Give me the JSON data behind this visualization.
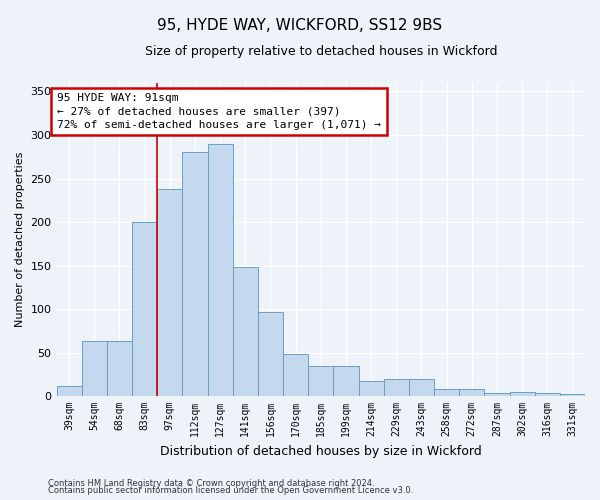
{
  "title": "95, HYDE WAY, WICKFORD, SS12 9BS",
  "subtitle": "Size of property relative to detached houses in Wickford",
  "xlabel": "Distribution of detached houses by size in Wickford",
  "ylabel": "Number of detached properties",
  "categories": [
    "39sqm",
    "54sqm",
    "68sqm",
    "83sqm",
    "97sqm",
    "112sqm",
    "127sqm",
    "141sqm",
    "156sqm",
    "170sqm",
    "185sqm",
    "199sqm",
    "214sqm",
    "229sqm",
    "243sqm",
    "258sqm",
    "272sqm",
    "287sqm",
    "302sqm",
    "316sqm",
    "331sqm"
  ],
  "values": [
    12,
    63,
    63,
    200,
    238,
    280,
    290,
    148,
    97,
    48,
    35,
    35,
    17,
    20,
    20,
    8,
    8,
    3,
    5,
    3,
    2
  ],
  "bar_color": "#c5d9ee",
  "bar_edge_color": "#6a9ec5",
  "background_color": "#eef2f9",
  "grid_color": "#ffffff",
  "annotation_line1": "95 HYDE WAY: 91sqm",
  "annotation_line2": "← 27% of detached houses are smaller (397)",
  "annotation_line3": "72% of semi-detached houses are larger (1,071) →",
  "annotation_box_color": "#ffffff",
  "annotation_border_color": "#cc0000",
  "red_line_index": 3.5,
  "ylim": [
    0,
    360
  ],
  "yticks": [
    0,
    50,
    100,
    150,
    200,
    250,
    300,
    350
  ],
  "footer_line1": "Contains HM Land Registry data © Crown copyright and database right 2024.",
  "footer_line2": "Contains public sector information licensed under the Open Government Licence v3.0."
}
